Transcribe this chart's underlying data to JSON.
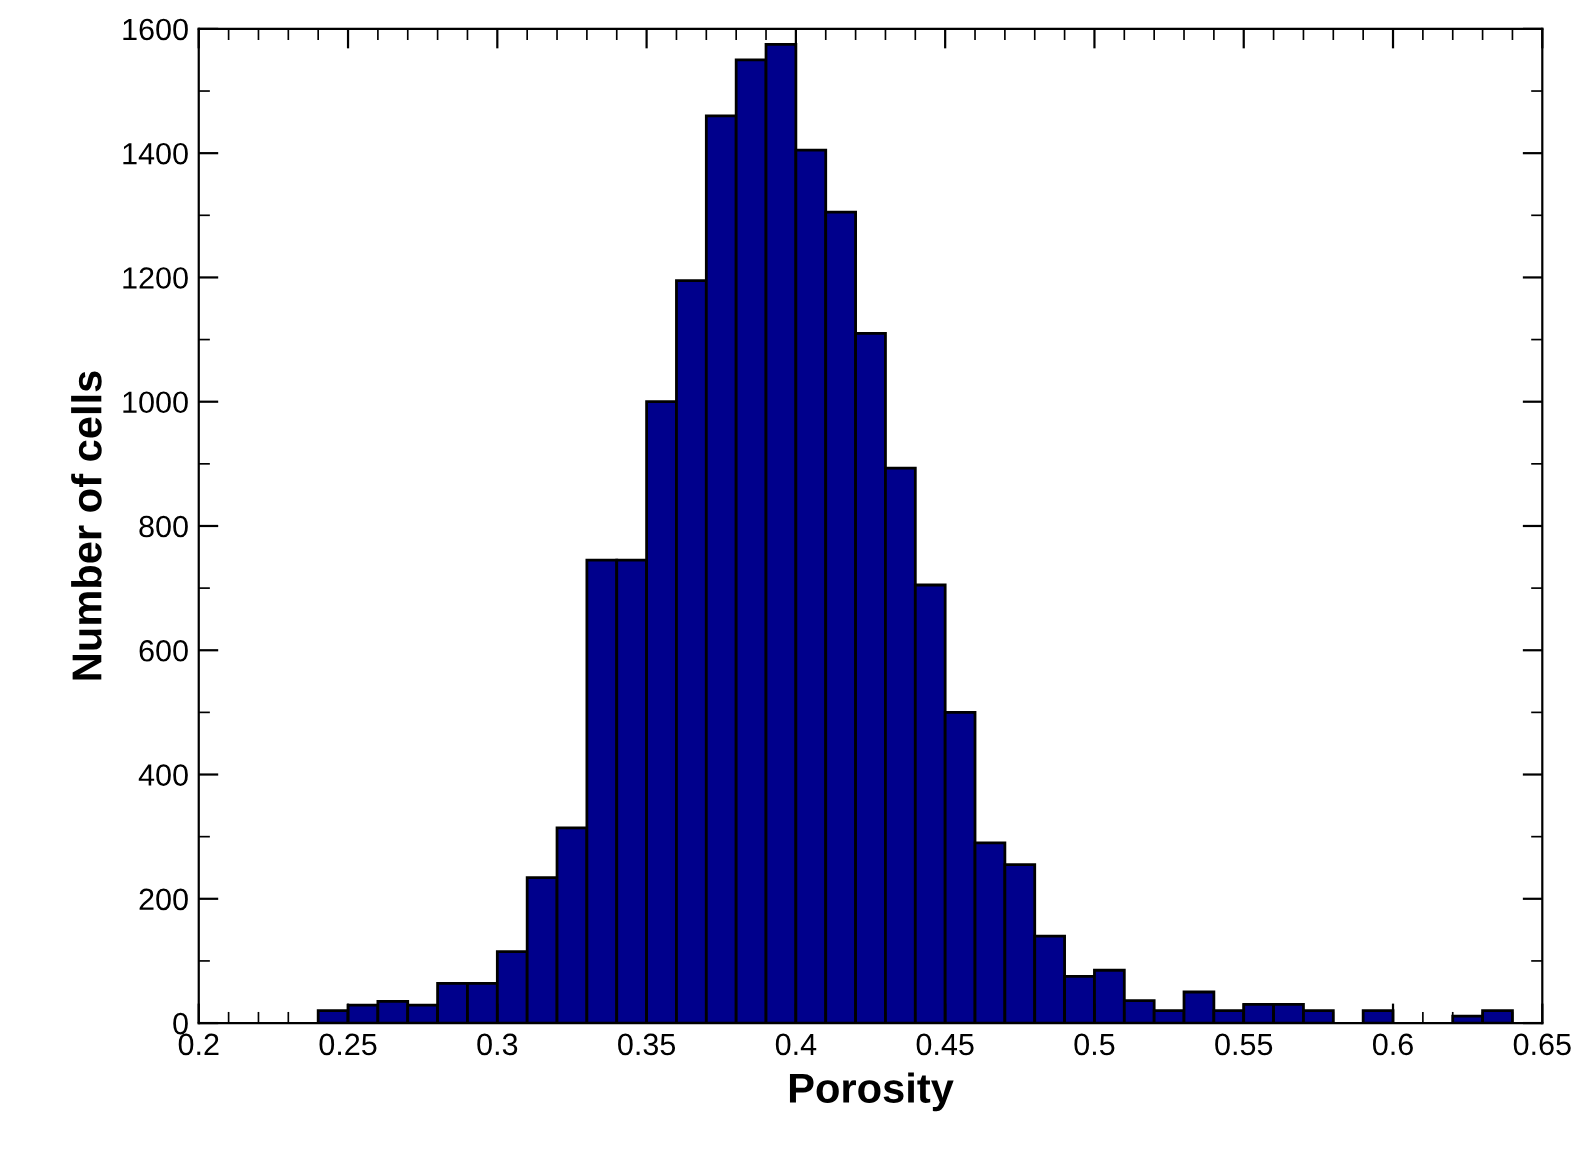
{
  "chart_data": {
    "type": "histogram",
    "xlabel": "Porosity",
    "ylabel": "Number of cells",
    "color": "#00008c",
    "bins": [
      0.24,
      0.25,
      0.26,
      0.27,
      0.28,
      0.29,
      0.3,
      0.31,
      0.32,
      0.33,
      0.34,
      0.35,
      0.36,
      0.37,
      0.38,
      0.39,
      0.4,
      0.41,
      0.42,
      0.43,
      0.44,
      0.45,
      0.46,
      0.47,
      0.48,
      0.49,
      0.5,
      0.51,
      0.52,
      0.53,
      0.54,
      0.55,
      0.56,
      0.57,
      0.58,
      0.59,
      0.6,
      0.61,
      0.62,
      0.63,
      0.64
    ],
    "values": [
      20,
      29,
      35,
      29,
      64,
      64,
      115,
      234,
      314,
      745,
      745,
      1000,
      1195,
      1460,
      1550,
      1575,
      1405,
      1305,
      1110,
      893,
      705,
      500,
      290,
      255,
      140,
      75,
      85,
      36,
      20,
      50,
      20,
      30,
      30,
      20,
      0,
      20,
      0,
      0,
      11,
      20
    ],
    "xlim": [
      0.2,
      0.65
    ],
    "xticks": [
      0.2,
      0.25,
      0.3,
      0.35,
      0.4,
      0.45,
      0.5,
      0.55,
      0.6,
      0.65
    ],
    "ylim": [
      0,
      1600
    ],
    "yticks": [
      0,
      200,
      400,
      600,
      800,
      1000,
      1200,
      1400,
      1600
    ],
    "grid": false
  }
}
